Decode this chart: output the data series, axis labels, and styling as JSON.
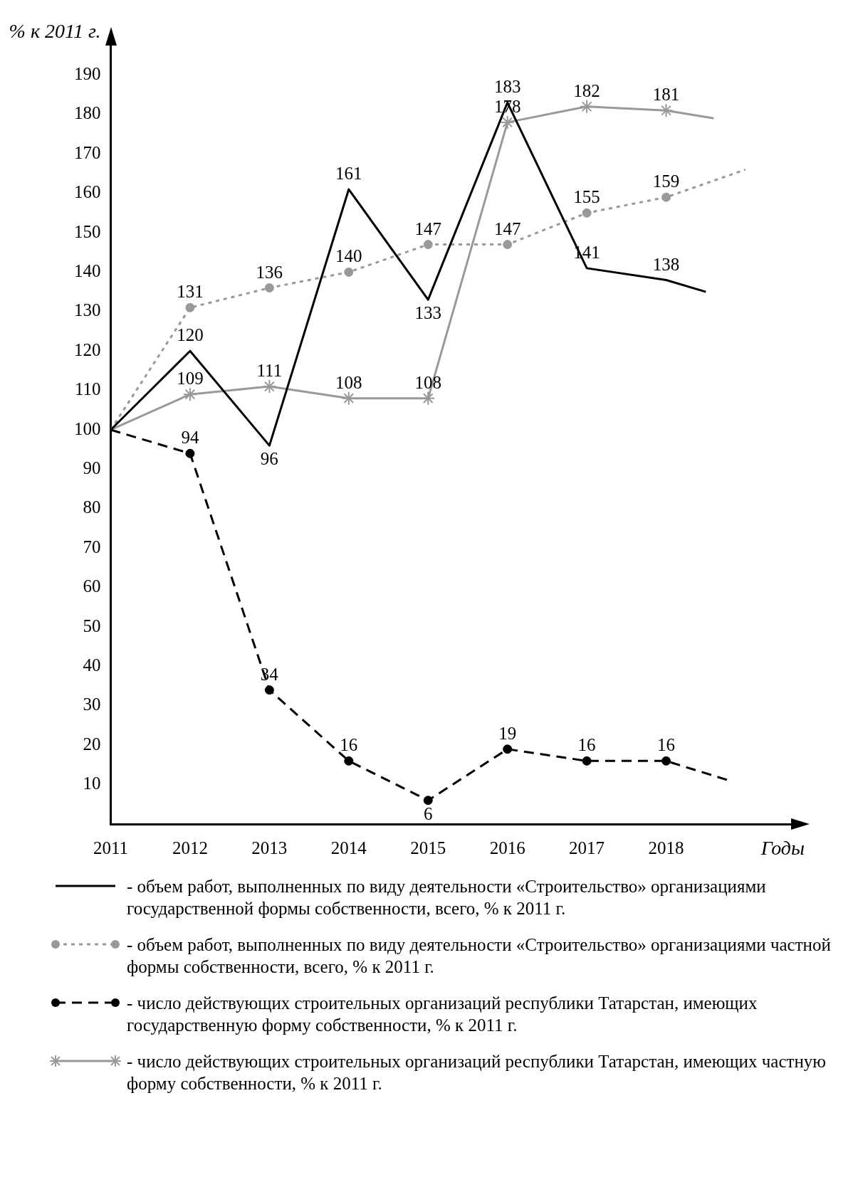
{
  "chart_data": {
    "type": "line",
    "xlabel": "Годы",
    "ylabel": "% к 2011 г.",
    "xlim": [
      2011,
      2019.7
    ],
    "xticks": [
      2011,
      2012,
      2013,
      2014,
      2015,
      2016,
      2017,
      2018
    ],
    "ylim": [
      0,
      200
    ],
    "yticks": [
      10,
      20,
      30,
      40,
      50,
      60,
      70,
      80,
      90,
      100,
      110,
      120,
      130,
      140,
      150,
      160,
      170,
      180,
      190
    ],
    "grid": false,
    "legend": "bottom",
    "series": [
      {
        "name": "- объем работ, выполненных по виду деятельности «Строительство» организациями государственной формы собственности, всего, % к 2011 г.",
        "color": "#000000",
        "marker": "none",
        "line_style": "solid",
        "x": [
          2011,
          2012,
          2013,
          2014,
          2015,
          2016,
          2017,
          2018,
          2018.5
        ],
        "values": [
          100,
          120,
          96,
          161,
          133,
          183,
          141,
          138,
          135
        ],
        "value_labels": [
          null,
          "120",
          "96",
          "161",
          "133",
          "183",
          "141",
          "138",
          null
        ]
      },
      {
        "name": "- объем работ, выполненных по виду деятельности «Строительство» организациями частной формы собственности, всего, % к 2011 г.",
        "color": "#999999",
        "marker": "circle",
        "line_style": "dotted",
        "x": [
          2011,
          2012,
          2013,
          2014,
          2015,
          2016,
          2017,
          2018,
          2019
        ],
        "values": [
          100,
          131,
          136,
          140,
          147,
          147,
          155,
          159,
          166
        ],
        "value_labels": [
          null,
          "131",
          "136",
          "140",
          "147",
          "147",
          "155",
          "159",
          null
        ]
      },
      {
        "name": "- число действующих строительных организаций республики Татарстан, имеющих государственную форму собственности, % к 2011 г.",
        "color": "#000000",
        "marker": "circle",
        "line_style": "dashed",
        "x": [
          2011,
          2012,
          2013,
          2014,
          2015,
          2016,
          2017,
          2018,
          2018.8
        ],
        "values": [
          100,
          94,
          34,
          16,
          6,
          19,
          16,
          16,
          11
        ],
        "value_labels": [
          null,
          "94",
          "34",
          "16",
          "6",
          "19",
          "16",
          "16",
          null
        ]
      },
      {
        "name": "- число действующих строительных организаций республики Татарстан, имеющих частную форму собственности, % к 2011 г.",
        "color": "#999999",
        "marker": "cross",
        "line_style": "solid",
        "x": [
          2011,
          2012,
          2013,
          2014,
          2015,
          2016,
          2017,
          2018,
          2018.6
        ],
        "values": [
          100,
          109,
          111,
          108,
          108,
          178,
          182,
          181,
          179
        ],
        "value_labels": [
          null,
          "109",
          "111",
          "108",
          "108",
          "178",
          "182",
          "181",
          null
        ]
      }
    ]
  }
}
